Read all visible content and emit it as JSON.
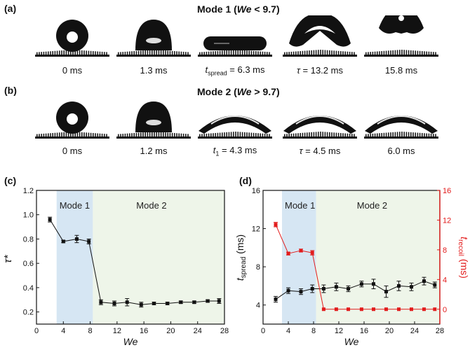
{
  "panels": {
    "a": {
      "label": "(a)",
      "title_prefix": "Mode 1 (",
      "title_var": "We",
      "title_suffix": " < 9.7)",
      "frames": [
        {
          "caption": "0 ms",
          "shape": "droplet"
        },
        {
          "caption": "1.3 ms",
          "shape": "dome"
        },
        {
          "caption_var": "t",
          "caption_sub": "spread",
          "caption_rest": " = 6.3 ms",
          "shape": "pancake"
        },
        {
          "caption_var": "τ",
          "caption_rest": " = 13.2 ms",
          "shape": "butterfly"
        },
        {
          "caption": "15.8 ms",
          "shape": "lifted"
        }
      ]
    },
    "b": {
      "label": "(b)",
      "title_prefix": "Mode 2 (",
      "title_var": "We",
      "title_suffix": " > 9.7)",
      "frames": [
        {
          "caption": "0 ms",
          "shape": "droplet"
        },
        {
          "caption": "1.2 ms",
          "shape": "dome"
        },
        {
          "caption_var": "t",
          "caption_sub": "1",
          "caption_rest": " = 4.3 ms",
          "shape": "arc"
        },
        {
          "caption_var": "τ",
          "caption_rest": " = 4.5 ms",
          "shape": "arc"
        },
        {
          "caption": "6.0 ms",
          "shape": "arc"
        }
      ]
    },
    "c": {
      "label": "(c)"
    },
    "d": {
      "label": "(d)"
    }
  },
  "chart_data": [
    {
      "type": "line",
      "panel": "c",
      "xlabel": "We",
      "ylabel": "τ*",
      "xlim": [
        0,
        28
      ],
      "ylim": [
        0.1,
        1.2
      ],
      "xticks": [
        0,
        4,
        8,
        12,
        16,
        20,
        24,
        28
      ],
      "yticks": [
        0.2,
        0.4,
        0.6,
        0.8,
        1.0,
        1.2
      ],
      "regions": [
        {
          "label": "Mode 1",
          "from": 3,
          "to": 8.4,
          "color": "#d6e6f3"
        },
        {
          "label": "Mode 2",
          "from": 8.4,
          "to": 28,
          "color": "#eef5e9"
        }
      ],
      "series": [
        {
          "name": "τ*",
          "color": "#111111",
          "x": [
            2.0,
            4.0,
            6.0,
            7.8,
            9.6,
            11.6,
            13.5,
            15.6,
            17.5,
            19.5,
            21.5,
            23.5,
            25.5,
            27.2
          ],
          "y": [
            0.96,
            0.78,
            0.8,
            0.78,
            0.28,
            0.27,
            0.28,
            0.26,
            0.27,
            0.27,
            0.28,
            0.28,
            0.29,
            0.29
          ],
          "err": [
            0.02,
            0.01,
            0.03,
            0.02,
            0.02,
            0.02,
            0.03,
            0.02,
            0.01,
            0.01,
            0.01,
            0.01,
            0.01,
            0.02
          ]
        }
      ]
    },
    {
      "type": "line",
      "panel": "d",
      "xlabel": "We",
      "ylabel_left_var": "t",
      "ylabel_left_sub": "spread",
      "ylabel_left_unit": " (ms)",
      "ylabel_right_var": "t",
      "ylabel_right_sub": "recoil",
      "ylabel_right_unit": " (ms)",
      "xlim": [
        0,
        28
      ],
      "ylim_left": [
        2,
        16
      ],
      "ylim_right": [
        -2,
        16
      ],
      "xticks": [
        0,
        4,
        8,
        12,
        16,
        20,
        24,
        28
      ],
      "yticks_left": [
        4,
        8,
        12,
        16
      ],
      "yticks_right": [
        0,
        4,
        8,
        12,
        16
      ],
      "regions": [
        {
          "label": "Mode 1",
          "from": 3,
          "to": 8.4,
          "color": "#d6e6f3"
        },
        {
          "label": "Mode 2",
          "from": 8.4,
          "to": 28,
          "color": "#eef5e9"
        }
      ],
      "series": [
        {
          "name": "t_spread",
          "axis": "left",
          "color": "#111111",
          "x": [
            2.0,
            4.0,
            6.0,
            7.8,
            9.6,
            11.6,
            13.5,
            15.6,
            17.5,
            19.5,
            21.5,
            23.5,
            25.5,
            27.2
          ],
          "y": [
            4.6,
            5.5,
            5.4,
            5.7,
            5.7,
            5.9,
            5.7,
            6.2,
            6.2,
            5.4,
            6.0,
            5.9,
            6.5,
            6.1
          ],
          "err": [
            0.3,
            0.3,
            0.3,
            0.4,
            0.4,
            0.4,
            0.3,
            0.3,
            0.5,
            0.6,
            0.5,
            0.4,
            0.4,
            0.3
          ]
        },
        {
          "name": "t_recoil",
          "axis": "right",
          "color": "#e21b1b",
          "x": [
            2.0,
            4.0,
            6.0,
            7.8,
            9.6,
            11.6,
            13.5,
            15.6,
            17.5,
            19.5,
            21.5,
            23.5,
            25.5,
            27.2
          ],
          "y": [
            11.4,
            7.5,
            7.9,
            7.6,
            0,
            0,
            0,
            0,
            0,
            0,
            0,
            0,
            0,
            0
          ],
          "err": [
            0.3,
            0.2,
            0.2,
            0.3,
            0,
            0,
            0,
            0,
            0,
            0,
            0,
            0,
            0,
            0
          ]
        }
      ]
    }
  ]
}
